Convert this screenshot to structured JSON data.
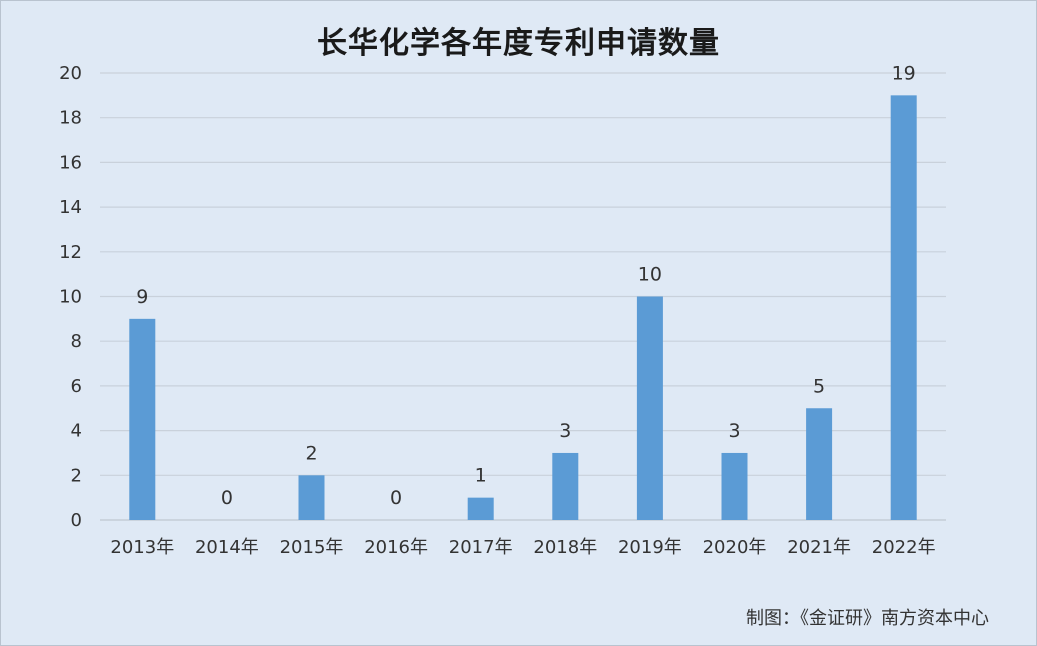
{
  "chart_data": {
    "type": "bar",
    "title": "长华化学各年度专利申请数量",
    "categories": [
      "2013年",
      "2014年",
      "2015年",
      "2016年",
      "2017年",
      "2018年",
      "2019年",
      "2020年",
      "2021年",
      "2022年"
    ],
    "values": [
      9,
      0,
      2,
      0,
      1,
      3,
      10,
      3,
      5,
      19
    ],
    "ylim": [
      0,
      20
    ],
    "yticks": [
      0,
      2,
      4,
      6,
      8,
      10,
      12,
      14,
      16,
      18,
      20
    ],
    "grid": true,
    "legend": "none",
    "data_labels": true,
    "bar_color": "#5b9bd5",
    "grid_color": "#c9d1db"
  },
  "source": "制图：《金证研》南方资本中心"
}
